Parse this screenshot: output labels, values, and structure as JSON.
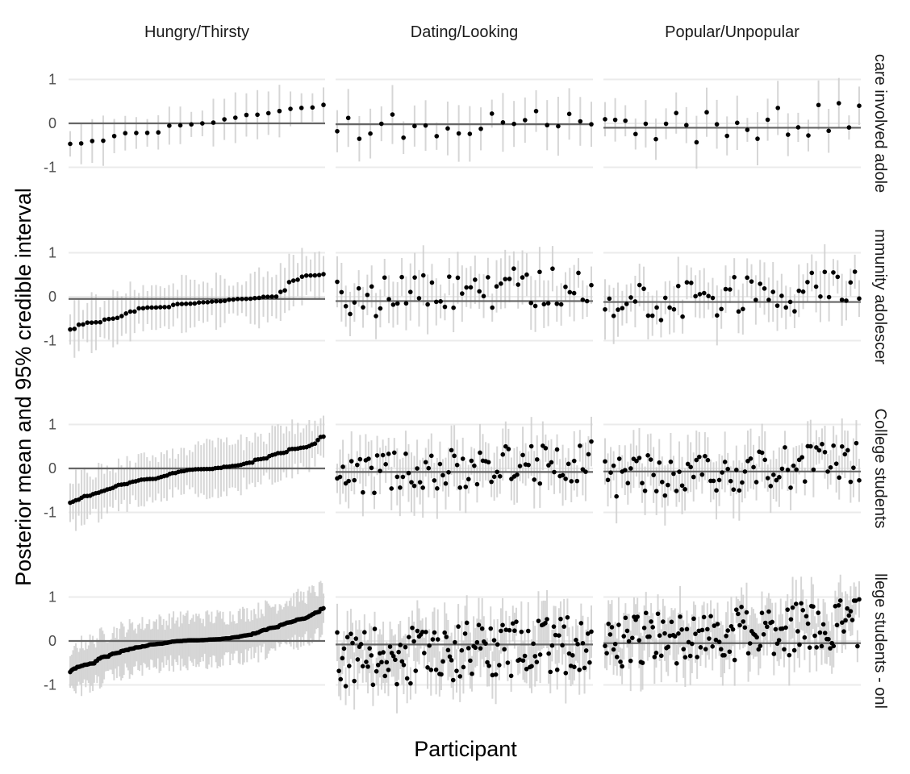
{
  "chart_data": {
    "type": "scatter",
    "facet_columns": [
      "Hungry/Thirsty",
      "Dating/Looking",
      "Popular/Unpopular"
    ],
    "facet_rows": [
      "care involved adole",
      "mmunity adolescer",
      "College students",
      "llege students - onl"
    ],
    "xlabel": "Participant",
    "ylabel": "Posterior mean and 95% credible interval",
    "ylim": [
      -1.1,
      1.1
    ],
    "yticks": [
      1,
      0,
      -1
    ],
    "ytick_labels": [
      "1",
      "0",
      "-1"
    ],
    "grid": true,
    "panels": [
      {
        "column": "Hungry/Thirsty",
        "row": "care involved adole",
        "reference": 0.0,
        "n": 24,
        "pattern": "sorted",
        "min": -0.47,
        "max": 0.43,
        "ci_half_width": 0.45,
        "seed": 11
      },
      {
        "column": "Dating/Looking",
        "row": "care involved adole",
        "reference": -0.02,
        "n": 24,
        "pattern": "random",
        "min": -0.5,
        "max": 0.52,
        "ci_half_width": 0.5,
        "seed": 12
      },
      {
        "column": "Popular/Unpopular",
        "row": "care involved adole",
        "reference": -0.1,
        "n": 26,
        "pattern": "random",
        "min": -0.65,
        "max": 0.54,
        "ci_half_width": 0.45,
        "seed": 13
      },
      {
        "column": "Hungry/Thirsty",
        "row": "mmunity adolescer",
        "reference": -0.05,
        "n": 60,
        "pattern": "sorted",
        "min": -0.75,
        "max": 0.52,
        "ci_half_width": 0.5,
        "seed": 21
      },
      {
        "column": "Dating/Looking",
        "row": "mmunity adolescer",
        "reference": -0.1,
        "n": 60,
        "pattern": "random",
        "min": -0.62,
        "max": 0.78,
        "ci_half_width": 0.5,
        "seed": 22
      },
      {
        "column": "Popular/Unpopular",
        "row": "mmunity adolescer",
        "reference": -0.12,
        "n": 60,
        "pattern": "random",
        "min": -0.75,
        "max": 0.65,
        "ci_half_width": 0.5,
        "seed": 23
      },
      {
        "column": "Hungry/Thirsty",
        "row": "College students",
        "reference": 0.0,
        "n": 90,
        "pattern": "sorted",
        "min": -0.78,
        "max": 0.75,
        "ci_half_width": 0.5,
        "seed": 31
      },
      {
        "column": "Dating/Looking",
        "row": "College students",
        "reference": -0.08,
        "n": 90,
        "pattern": "random",
        "min": -0.75,
        "max": 0.65,
        "ci_half_width": 0.5,
        "seed": 32
      },
      {
        "column": "Popular/Unpopular",
        "row": "College students",
        "reference": -0.07,
        "n": 90,
        "pattern": "random",
        "min": -0.85,
        "max": 0.65,
        "ci_half_width": 0.5,
        "seed": 33
      },
      {
        "column": "Hungry/Thirsty",
        "row": "llege students - onl",
        "reference": 0.0,
        "n": 180,
        "pattern": "sorted",
        "min": -0.72,
        "max": 0.75,
        "ci_half_width": 0.5,
        "seed": 41
      },
      {
        "column": "Dating/Looking",
        "row": "llege students - onl",
        "reference": -0.08,
        "n": 150,
        "pattern": "random",
        "min": -1.3,
        "max": 0.72,
        "ci_half_width": 0.5,
        "seed": 42
      },
      {
        "column": "Popular/Unpopular",
        "row": "llege students - onl",
        "reference": -0.05,
        "n": 150,
        "pattern": "random",
        "min": -0.82,
        "max": 1.05,
        "ci_half_width": 0.5,
        "seed": 43
      }
    ]
  }
}
